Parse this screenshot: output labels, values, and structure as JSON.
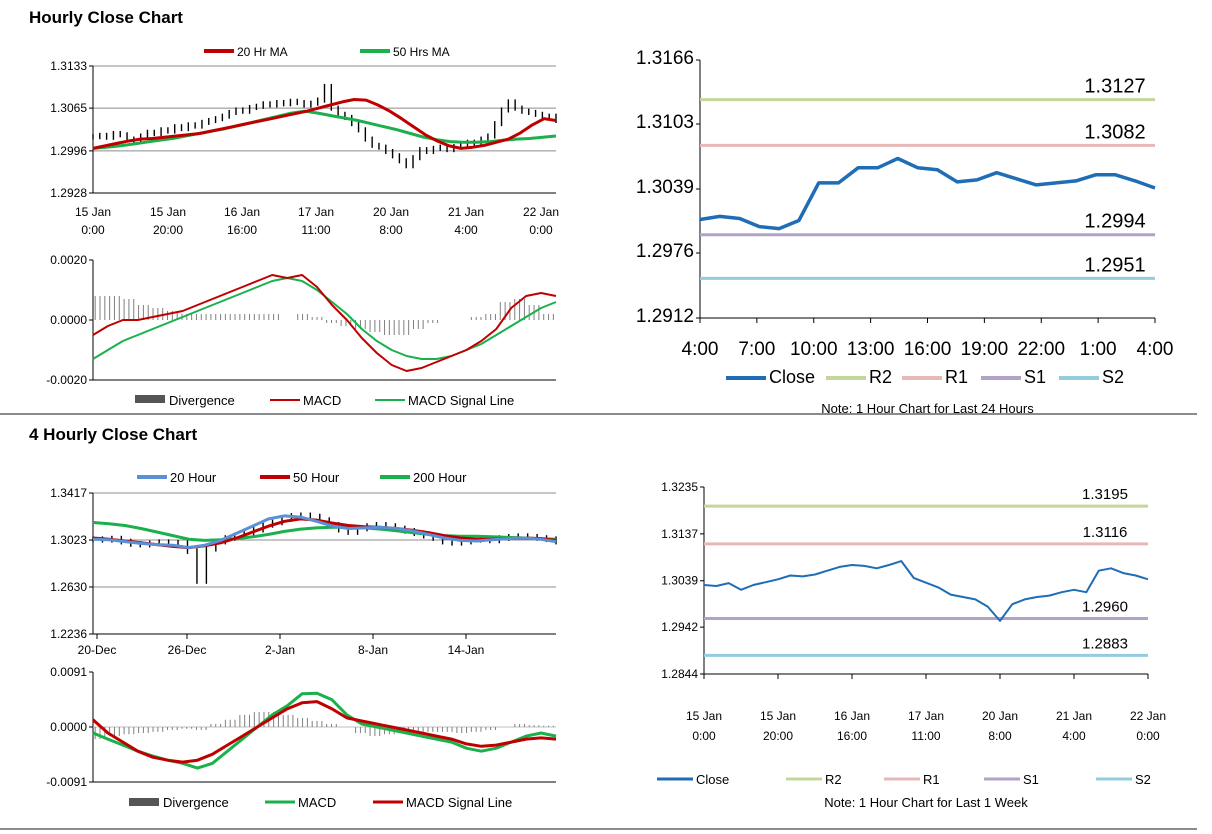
{
  "titles": {
    "hourly": "Hourly Close Chart",
    "four_hourly": "4 Hourly Close Chart"
  },
  "colors": {
    "ma_red": "#c00000",
    "ma_green": "#1ab04c",
    "ma_blue": "#5b8fd6",
    "close_blue": "#1f6db4",
    "r2": "#c4d79b",
    "r1": "#e6b9b8",
    "s1": "#b3a2c7",
    "s2": "#93cddd",
    "bar_dark": "#555555",
    "price": "#000000"
  },
  "chart_data": [
    {
      "id": "hourly_ma",
      "type": "line",
      "title": "",
      "ylim": [
        1.2928,
        1.3133
      ],
      "yticks": [
        "1.3133",
        "1.3065",
        "1.2996",
        "1.2928"
      ],
      "xticks": [
        [
          "15 Jan",
          "0:00"
        ],
        [
          "15 Jan",
          "20:00"
        ],
        [
          "16 Jan",
          "16:00"
        ],
        [
          "17 Jan",
          "11:00"
        ],
        [
          "20 Jan",
          "8:00"
        ],
        [
          "21 Jan",
          "4:00"
        ],
        [
          "22 Jan",
          "0:00"
        ]
      ],
      "legend": [
        "20 Hr MA",
        "50 Hrs MA"
      ],
      "price": [
        1.3019,
        1.3021,
        1.3018,
        1.3024,
        1.3022,
        1.3015,
        1.3012,
        1.302,
        1.3026,
        1.3024,
        1.303,
        1.3028,
        1.3035,
        1.3032,
        1.3038,
        1.3036,
        1.3042,
        1.3045,
        1.3048,
        1.3052,
        1.3058,
        1.3062,
        1.306,
        1.3066,
        1.3068,
        1.3072,
        1.307,
        1.3074,
        1.3072,
        1.3076,
        1.3074,
        1.307,
        1.3073,
        1.3078,
        1.31,
        1.3065,
        1.3055,
        1.305,
        1.304,
        1.303,
        1.3015,
        1.3005,
        1.3002,
        1.2995,
        1.2988,
        1.298,
        1.2972,
        1.2985,
        1.2998,
        1.2995,
        1.3,
        1.3002,
        1.2998,
        1.3003,
        1.3006,
        1.301,
        1.3008,
        1.3015,
        1.302,
        1.304,
        1.3062,
        1.3075,
        1.3065,
        1.306,
        1.3058,
        1.3055,
        1.305,
        1.3052,
        1.3045
      ],
      "ma20": [
        1.3,
        1.3004,
        1.3008,
        1.3012,
        1.3015,
        1.3016,
        1.3018,
        1.302,
        1.3022,
        1.3024,
        1.3028,
        1.3032,
        1.3036,
        1.304,
        1.3044,
        1.3048,
        1.3052,
        1.3056,
        1.306,
        1.3065,
        1.307,
        1.3075,
        1.3079,
        1.3078,
        1.307,
        1.306,
        1.3048,
        1.3035,
        1.3022,
        1.3012,
        1.3004,
        1.3,
        1.3002,
        1.3005,
        1.301,
        1.3015,
        1.3025,
        1.3038,
        1.3048,
        1.3045
      ],
      "ma50": [
        1.3,
        1.3002,
        1.3004,
        1.3007,
        1.301,
        1.3013,
        1.3016,
        1.302,
        1.3024,
        1.3028,
        1.3032,
        1.3037,
        1.3042,
        1.3047,
        1.3052,
        1.3057,
        1.306,
        1.3057,
        1.3053,
        1.3049,
        1.3045,
        1.304,
        1.3035,
        1.303,
        1.3024,
        1.3018,
        1.3014,
        1.3011,
        1.301,
        1.301,
        1.3011,
        1.3013,
        1.3015,
        1.3016,
        1.3018,
        1.302
      ]
    },
    {
      "id": "hourly_macd",
      "type": "line",
      "ylim": [
        -0.002,
        0.002
      ],
      "yticks": [
        "0.0020",
        "0.0000",
        "-0.0020"
      ],
      "legend": [
        "Divergence",
        "MACD",
        "MACD Signal Line"
      ],
      "macd": [
        -0.0005,
        -0.0002,
        0.0,
        0.0,
        0.0001,
        0.0002,
        0.0003,
        0.0005,
        0.0007,
        0.0009,
        0.0011,
        0.0013,
        0.0015,
        0.0014,
        0.0015,
        0.0011,
        0.0005,
        0.0,
        -0.0006,
        -0.0011,
        -0.0015,
        -0.0017,
        -0.0016,
        -0.0014,
        -0.0012,
        -0.001,
        -0.0007,
        -0.0003,
        0.0004,
        0.0008,
        0.0009,
        0.0008
      ],
      "signal": [
        -0.0013,
        -0.001,
        -0.0007,
        -0.0005,
        -0.0003,
        -0.0001,
        0.0001,
        0.0003,
        0.0005,
        0.0007,
        0.0009,
        0.0011,
        0.0013,
        0.0014,
        0.0013,
        0.001,
        0.0006,
        0.0002,
        -0.0003,
        -0.0007,
        -0.001,
        -0.0012,
        -0.0013,
        -0.0013,
        -0.0012,
        -0.001,
        -0.0008,
        -0.0005,
        -0.0002,
        0.0001,
        0.0004,
        0.0006
      ],
      "divergence": [
        0.0008,
        0.0008,
        0.0007,
        0.0005,
        0.0004,
        0.0003,
        0.0002,
        0.0002,
        0.0002,
        0.0002,
        0.0002,
        0.0002,
        0.0002,
        0.0,
        0.0002,
        0.0001,
        -0.0001,
        -0.0002,
        -0.0003,
        -0.0004,
        -0.0005,
        -0.0005,
        -0.0003,
        -0.0001,
        0.0,
        0.0,
        0.0001,
        0.0002,
        0.0006,
        0.0007,
        0.0005,
        0.0002
      ]
    },
    {
      "id": "hourly_close",
      "type": "line",
      "ylim": [
        1.2912,
        1.3166
      ],
      "yticks": [
        "1.3166",
        "1.3103",
        "1.3039",
        "1.2976",
        "1.2912"
      ],
      "xticks": [
        "4:00",
        "7:00",
        "10:00",
        "13:00",
        "16:00",
        "19:00",
        "22:00",
        "1:00",
        "4:00"
      ],
      "close": [
        1.3009,
        1.3012,
        1.301,
        1.3002,
        1.3,
        1.3008,
        1.3045,
        1.3045,
        1.306,
        1.306,
        1.3069,
        1.306,
        1.3058,
        1.3046,
        1.3048,
        1.3055,
        1.3049,
        1.3043,
        1.3045,
        1.3047,
        1.3053,
        1.3053,
        1.3047,
        1.304
      ],
      "levels": [
        {
          "name": "R2",
          "value": 1.3127,
          "label": "1.3127"
        },
        {
          "name": "R1",
          "value": 1.3082,
          "label": "1.3082"
        },
        {
          "name": "S1",
          "value": 1.2994,
          "label": "1.2994"
        },
        {
          "name": "S2",
          "value": 1.2951,
          "label": "1.2951"
        }
      ],
      "legend": [
        "Close",
        "R2",
        "R1",
        "S1",
        "S2"
      ],
      "note": "Note: 1 Hour Chart for Last 24 Hours"
    },
    {
      "id": "four_hourly_ma",
      "type": "line",
      "ylim": [
        1.2236,
        1.3417
      ],
      "yticks": [
        "1.3417",
        "1.3023",
        "1.2630",
        "1.2236"
      ],
      "xticks": [
        "20-Dec",
        "26-Dec",
        "2-Jan",
        "8-Jan",
        "14-Jan"
      ],
      "legend": [
        "20 Hour",
        "50 Hour",
        "200 Hour"
      ],
      "price": [
        1.303,
        1.3025,
        1.3035,
        1.301,
        1.299,
        1.2985,
        1.2995,
        1.3005,
        1.299,
        1.3,
        1.293,
        1.268,
        1.295,
        1.301,
        1.304,
        1.306,
        1.308,
        1.311,
        1.315,
        1.317,
        1.32,
        1.3225,
        1.323,
        1.322,
        1.319,
        1.315,
        1.311,
        1.309,
        1.312,
        1.314,
        1.315,
        1.314,
        1.312,
        1.31,
        1.308,
        1.306,
        1.304,
        1.301,
        1.3,
        1.301,
        1.3025,
        1.303,
        1.302,
        1.304,
        1.305,
        1.3055,
        1.305,
        1.304,
        1.303,
        1.301
      ],
      "ma20": [
        1.303,
        1.3025,
        1.301,
        1.2995,
        1.2985,
        1.298,
        1.296,
        1.298,
        1.302,
        1.308,
        1.314,
        1.32,
        1.3225,
        1.3215,
        1.318,
        1.314,
        1.312,
        1.3125,
        1.313,
        1.312,
        1.31,
        1.307,
        1.304,
        1.302,
        1.3015,
        1.3025,
        1.3035,
        1.304,
        1.303,
        1.301
      ],
      "ma50": [
        1.304,
        1.303,
        1.3015,
        1.3,
        1.2985,
        1.297,
        1.296,
        1.2975,
        1.3,
        1.304,
        1.309,
        1.314,
        1.318,
        1.32,
        1.319,
        1.3165,
        1.3145,
        1.3135,
        1.313,
        1.312,
        1.3105,
        1.3085,
        1.306,
        1.304,
        1.303,
        1.303,
        1.3035,
        1.304,
        1.3035,
        1.302
      ],
      "ma200": [
        1.317,
        1.316,
        1.3145,
        1.312,
        1.309,
        1.306,
        1.303,
        1.302,
        1.3025,
        1.3035,
        1.305,
        1.307,
        1.3095,
        1.3115,
        1.3125,
        1.313,
        1.313,
        1.3125,
        1.3115,
        1.31,
        1.3085,
        1.307,
        1.306,
        1.3055,
        1.3055,
        1.305,
        1.3045,
        1.304,
        1.3035,
        1.303
      ]
    },
    {
      "id": "four_hourly_macd",
      "type": "line",
      "ylim": [
        -0.0091,
        0.0091
      ],
      "yticks": [
        "0.0091",
        "0.0000",
        "-0.0091"
      ],
      "legend": [
        "Divergence",
        "MACD",
        "MACD Signal Line"
      ],
      "macd": [
        -0.001,
        -0.002,
        -0.003,
        -0.004,
        -0.0048,
        -0.0055,
        -0.006,
        -0.0068,
        -0.006,
        -0.004,
        -0.002,
        0.0,
        0.002,
        0.0035,
        0.0055,
        0.0056,
        0.0045,
        0.002,
        0.0005,
        0.0,
        -0.0005,
        -0.001,
        -0.0015,
        -0.002,
        -0.0025,
        -0.0035,
        -0.004,
        -0.0035,
        -0.0025,
        -0.0015,
        -0.001,
        -0.0015
      ],
      "signal": [
        0.0012,
        -0.001,
        -0.0025,
        -0.004,
        -0.005,
        -0.0055,
        -0.0058,
        -0.0055,
        -0.0045,
        -0.003,
        -0.0015,
        0.0,
        0.0015,
        0.003,
        0.004,
        0.0042,
        0.003,
        0.0015,
        0.001,
        0.0005,
        0.0,
        -0.0005,
        -0.001,
        -0.0015,
        -0.002,
        -0.0028,
        -0.0032,
        -0.003,
        -0.0025,
        -0.002,
        -0.0018,
        -0.002
      ],
      "divergence": [
        -0.002,
        -0.0015,
        -0.0012,
        -0.001,
        -0.0008,
        -0.0005,
        -0.0003,
        -0.0005,
        0.0005,
        0.0012,
        0.002,
        0.0025,
        0.0025,
        0.002,
        0.0015,
        0.001,
        0.0005,
        0.0,
        -0.001,
        -0.0015,
        -0.0012,
        -0.001,
        -0.0008,
        -0.0008,
        -0.0008,
        -0.001,
        -0.0008,
        -0.0005,
        0.0,
        0.0005,
        0.0003,
        0.0002
      ]
    },
    {
      "id": "weekly_close",
      "type": "line",
      "ylim": [
        1.2844,
        1.3235
      ],
      "yticks": [
        "1.3235",
        "1.3137",
        "1.3039",
        "1.2942",
        "1.2844"
      ],
      "xticks": [
        [
          "15 Jan",
          "0:00"
        ],
        [
          "15 Jan",
          "20:00"
        ],
        [
          "16 Jan",
          "16:00"
        ],
        [
          "17 Jan",
          "11:00"
        ],
        [
          "20 Jan",
          "8:00"
        ],
        [
          "21 Jan",
          "4:00"
        ],
        [
          "22 Jan",
          "0:00"
        ]
      ],
      "close": [
        1.303,
        1.3028,
        1.3034,
        1.302,
        1.303,
        1.3036,
        1.3042,
        1.305,
        1.3048,
        1.3052,
        1.306,
        1.3068,
        1.3072,
        1.307,
        1.3065,
        1.3072,
        1.308,
        1.3045,
        1.3035,
        1.3025,
        1.301,
        1.3005,
        1.3,
        1.2985,
        1.2955,
        1.299,
        1.3,
        1.3005,
        1.3008,
        1.3015,
        1.302,
        1.3015,
        1.306,
        1.3065,
        1.3055,
        1.305,
        1.3042
      ],
      "levels": [
        {
          "name": "R2",
          "value": 1.3195,
          "label": "1.3195"
        },
        {
          "name": "R1",
          "value": 1.3116,
          "label": "1.3116"
        },
        {
          "name": "S1",
          "value": 1.296,
          "label": "1.2960"
        },
        {
          "name": "S2",
          "value": 1.2883,
          "label": "1.2883"
        }
      ],
      "legend": [
        "Close",
        "R2",
        "R1",
        "S1",
        "S2"
      ],
      "note": "Note: 1 Hour Chart for Last 1 Week"
    }
  ]
}
